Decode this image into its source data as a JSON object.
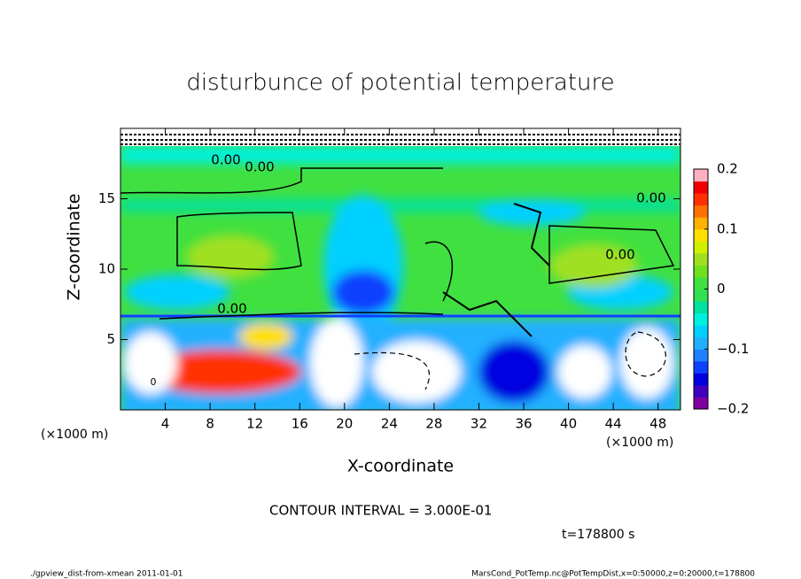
{
  "chart_data": {
    "type": "contour",
    "title": "disturbunce of potential temperature",
    "x_label": "X-coordinate",
    "y_label": "Z-coordinate",
    "x_unit": "(×1000 m)",
    "x_unit_right": "(×1000 m)",
    "xlim": [
      0,
      50
    ],
    "xticks": [
      4,
      8,
      12,
      16,
      20,
      24,
      28,
      32,
      36,
      40,
      44,
      48
    ],
    "ylim": [
      0,
      20
    ],
    "yticks": [
      5,
      10,
      15
    ],
    "contour_labels": [
      "0.00",
      "0.00",
      "0.00",
      "0.00",
      "0.00",
      "0"
    ],
    "colorbar": {
      "clim": [
        -0.2,
        0.2
      ],
      "ticks": [
        {
          "value": 0.2,
          "label": "0.2"
        },
        {
          "value": 0.1,
          "label": "0.1"
        },
        0,
        {
          "value": -0.1,
          "label": "−0.1"
        },
        {
          "value": -0.2,
          "label": "−0.2"
        }
      ],
      "colors": [
        "#8000a0",
        "#4000c0",
        "#0000e0",
        "#1040ff",
        "#2080ff",
        "#20b0ff",
        "#00d0ff",
        "#00f0e0",
        "#00e0a0",
        "#30e050",
        "#40e040",
        "#70e020",
        "#a0e020",
        "#d0f000",
        "#ffe000",
        "#ffb000",
        "#ff7000",
        "#ff3000",
        "#f00000",
        "#ffb0c0"
      ]
    },
    "contour_interval": "CONTOUR INTERVAL = 3.000E-01",
    "time": "t=178800 s",
    "footer_left": "./gpview_dist-from-xmean  2011-01-01",
    "footer_right": "MarsCond_PotTemp.nc@PotTempDist,x=0:50000,z=0:20000,t=178800"
  }
}
